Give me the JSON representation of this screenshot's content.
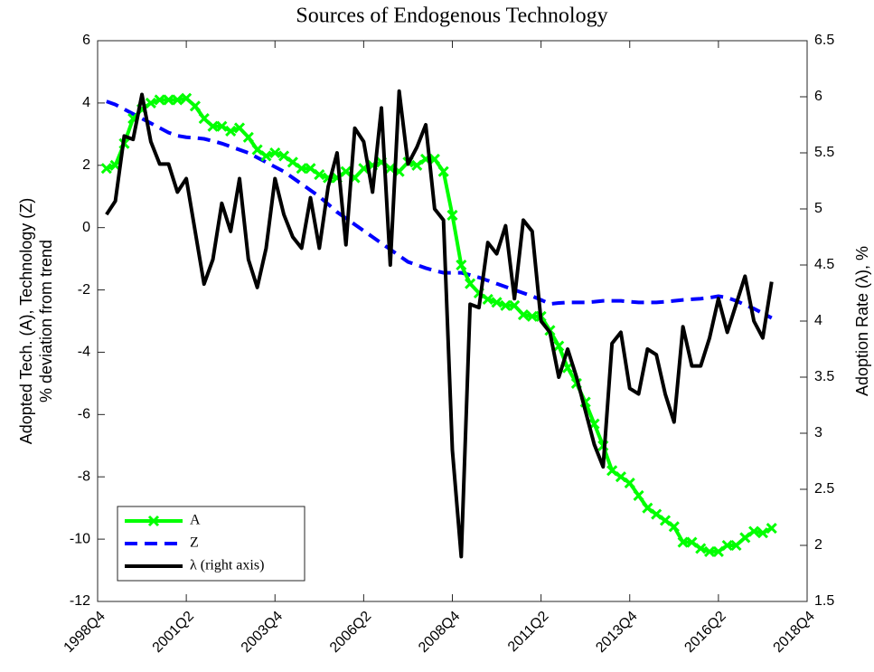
{
  "chart_data": {
    "type": "line",
    "title": "Sources of Endogenous Technology",
    "ylabel": [
      "Adopted Tech. (A), Technology (Z)",
      "% deviation from trend"
    ],
    "y2label": "Adoption Rate (λ), %",
    "categories": [
      "1998Q4",
      null,
      null,
      null,
      null,
      null,
      null,
      null,
      null,
      null,
      "2001Q2",
      null,
      null,
      null,
      null,
      null,
      null,
      null,
      null,
      null,
      "2003Q4",
      null,
      null,
      null,
      null,
      null,
      null,
      null,
      null,
      null,
      "2006Q2",
      null,
      null,
      null,
      null,
      null,
      null,
      null,
      null,
      null,
      "2008Q4",
      null,
      null,
      null,
      null,
      null,
      null,
      null,
      null,
      null,
      "2011Q2",
      null,
      null,
      null,
      null,
      null,
      null,
      null,
      null,
      null,
      "2013Q4",
      null,
      null,
      null,
      null,
      null,
      null,
      null,
      null,
      null,
      "2016Q2",
      null,
      null,
      null,
      null,
      null,
      null,
      null,
      null,
      null,
      "2018Q4"
    ],
    "ylim": [
      -12,
      6
    ],
    "yticks": [
      -12,
      -10,
      -8,
      -6,
      -4,
      -2,
      0,
      2,
      4,
      6
    ],
    "y2lim": [
      1.5,
      6.5
    ],
    "y2ticks": [
      1.5,
      2,
      2.5,
      3,
      3.5,
      4,
      4.5,
      5,
      5.5,
      6,
      6.5
    ],
    "legend": "lower left",
    "series": [
      {
        "name": "A",
        "color": "#00ff00",
        "marker": "x",
        "style": "solid",
        "values": [
          null,
          1.9,
          2.0,
          2.7,
          3.5,
          3.8,
          4.0,
          4.1,
          4.1,
          4.1,
          4.15,
          3.9,
          3.5,
          3.25,
          3.25,
          3.1,
          3.2,
          2.9,
          2.5,
          2.3,
          2.4,
          2.3,
          2.1,
          1.9,
          1.9,
          1.7,
          1.6,
          1.6,
          1.8,
          1.6,
          1.9,
          2.0,
          2.1,
          1.9,
          1.8,
          2.1,
          2.0,
          2.2,
          2.2,
          1.8,
          0.4,
          -1.2,
          -1.8,
          -2.1,
          -2.3,
          -2.4,
          -2.5,
          -2.5,
          -2.8,
          -2.85,
          -2.85,
          -3.3,
          -3.8,
          -4.5,
          -5.0,
          -5.6,
          -6.3,
          -7.0,
          -7.8,
          -8.0,
          -8.2,
          -8.6,
          -9.0,
          -9.2,
          -9.4,
          -9.6,
          -10.1,
          -10.1,
          -10.3,
          -10.4,
          -10.4,
          -10.2,
          -10.2,
          -9.95,
          -9.75,
          -9.8,
          -9.65,
          null,
          null,
          null,
          null
        ]
      },
      {
        "name": "Z",
        "color": "#0000ff",
        "style": "dashed",
        "values": [
          null,
          4.05,
          3.95,
          3.8,
          3.65,
          3.5,
          3.35,
          3.2,
          3.05,
          2.95,
          2.9,
          2.88,
          2.85,
          2.78,
          2.7,
          2.6,
          2.5,
          2.4,
          2.25,
          2.1,
          1.95,
          1.8,
          1.6,
          1.4,
          1.2,
          1.0,
          0.75,
          0.5,
          0.3,
          0.1,
          -0.1,
          -0.3,
          -0.5,
          -0.7,
          -0.9,
          -1.1,
          -1.2,
          -1.3,
          -1.38,
          -1.45,
          -1.45,
          -1.45,
          -1.52,
          -1.6,
          -1.7,
          -1.8,
          -1.9,
          -2.0,
          -2.1,
          -2.2,
          -2.32,
          -2.45,
          -2.42,
          -2.4,
          -2.4,
          -2.4,
          -2.38,
          -2.35,
          -2.35,
          -2.35,
          -2.38,
          -2.4,
          -2.4,
          -2.4,
          -2.38,
          -2.35,
          -2.32,
          -2.3,
          -2.28,
          -2.25,
          -2.2,
          -2.25,
          -2.35,
          -2.48,
          -2.6,
          -2.75,
          -2.9,
          null,
          null,
          null,
          null
        ]
      },
      {
        "name": "λ (right axis)",
        "color": "#000000",
        "style": "solid",
        "axis": "y2",
        "values": [
          null,
          4.95,
          5.07,
          5.65,
          5.62,
          6.02,
          5.6,
          5.4,
          5.4,
          5.15,
          5.27,
          4.8,
          4.33,
          4.55,
          5.05,
          4.8,
          5.27,
          4.55,
          4.3,
          4.65,
          5.27,
          4.95,
          4.75,
          4.65,
          5.1,
          4.65,
          5.2,
          5.5,
          4.68,
          5.72,
          5.6,
          5.15,
          5.9,
          4.5,
          6.05,
          5.4,
          5.55,
          5.75,
          5.0,
          4.9,
          2.85,
          1.9,
          4.15,
          4.12,
          4.7,
          4.6,
          4.85,
          4.2,
          4.9,
          4.8,
          4.0,
          3.9,
          3.5,
          3.75,
          3.5,
          3.2,
          2.9,
          2.7,
          3.8,
          3.9,
          3.4,
          3.35,
          3.75,
          3.7,
          3.35,
          3.1,
          3.95,
          3.6,
          3.6,
          3.85,
          4.2,
          3.9,
          4.15,
          4.4,
          4.0,
          3.85,
          4.35,
          null,
          null,
          null,
          null
        ]
      }
    ]
  }
}
